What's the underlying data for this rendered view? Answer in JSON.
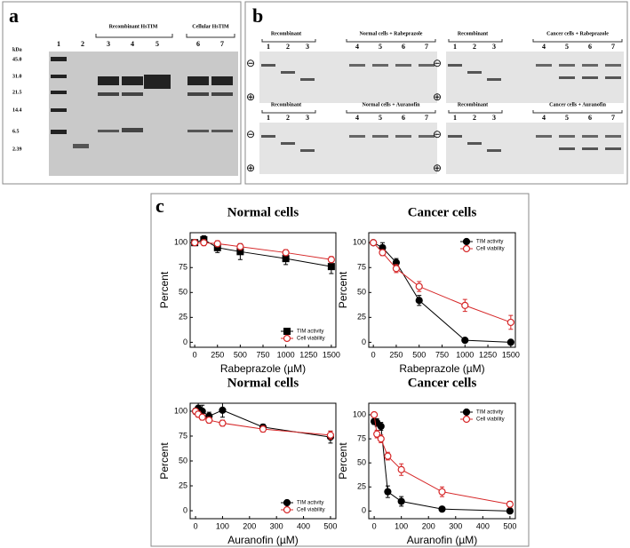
{
  "panel_a": {
    "letter": "a",
    "kda_label": "kDa",
    "markers": [
      "45.0",
      "31.0",
      "21.5",
      "14.4",
      "6.5",
      "2.39"
    ],
    "groups": [
      "Recombinant HsTIM",
      "Cellular HsTIM"
    ],
    "lanes": [
      "1",
      "2",
      "3",
      "4",
      "5",
      "6",
      "7"
    ]
  },
  "panel_b": {
    "letter": "b",
    "minus_symbol": "⊖",
    "plus_symbol": "⊕",
    "blots": [
      {
        "left_label": "Recombinant",
        "left_lanes": [
          "1",
          "2",
          "3"
        ],
        "right_label": "Normal cells + Rabeprazole",
        "right_lanes": [
          "4",
          "5",
          "6",
          "7"
        ]
      },
      {
        "left_label": "Recombinant",
        "left_lanes": [
          "1",
          "2",
          "3"
        ],
        "right_label": "Cancer cells + Rabeprazole",
        "right_lanes": [
          "4",
          "5",
          "6",
          "7"
        ]
      },
      {
        "left_label": "Recombinant",
        "left_lanes": [
          "1",
          "2",
          "3"
        ],
        "right_label": "Normal cells + Auranofin",
        "right_lanes": [
          "4",
          "5",
          "6",
          "7"
        ]
      },
      {
        "left_label": "Recombinant",
        "left_lanes": [
          "1",
          "2",
          "3"
        ],
        "right_label": "Cancer cells + Auranofin",
        "right_lanes": [
          "4",
          "5",
          "6",
          "7"
        ]
      }
    ]
  },
  "panel_c": {
    "letter": "c"
  },
  "chart_data": [
    {
      "type": "line",
      "title": "Normal cells",
      "x_label": "Rabeprazole (µM)",
      "y_label": "Percent",
      "x": [
        0,
        100,
        250,
        500,
        1000,
        1500
      ],
      "xlim": [
        -50,
        1550
      ],
      "xticks": [
        0,
        250,
        500,
        750,
        1000,
        1250,
        1500
      ],
      "ylim": [
        -5,
        110
      ],
      "yticks": [
        0,
        25,
        50,
        75,
        100
      ],
      "legend": "bottom-right",
      "series": [
        {
          "name": "TIM activity",
          "color": "#000000",
          "marker": "square",
          "filled": true,
          "values": [
            100,
            103,
            95,
            91,
            84,
            76
          ],
          "errors": [
            2,
            4,
            5,
            8,
            6,
            7
          ]
        },
        {
          "name": "Cell viability",
          "color": "#d62728",
          "marker": "circle",
          "filled": false,
          "values": [
            100,
            100,
            99,
            96,
            90,
            83
          ],
          "errors": [
            2,
            3,
            3,
            3,
            3,
            3
          ]
        }
      ]
    },
    {
      "type": "line",
      "title": "Cancer cells",
      "x_label": "Rabeprazole (µM)",
      "y_label": "Percent",
      "x": [
        0,
        100,
        250,
        500,
        1000,
        1500
      ],
      "xlim": [
        -50,
        1550
      ],
      "xticks": [
        0,
        250,
        500,
        750,
        1000,
        1250,
        1500
      ],
      "ylim": [
        -5,
        110
      ],
      "yticks": [
        0,
        25,
        50,
        75,
        100
      ],
      "legend": "top-right",
      "series": [
        {
          "name": "TIM activity",
          "color": "#000000",
          "marker": "circle",
          "filled": true,
          "values": [
            100,
            95,
            80,
            42,
            2,
            0
          ],
          "errors": [
            2,
            5,
            4,
            5,
            1,
            1
          ]
        },
        {
          "name": "Cell viability",
          "color": "#d62728",
          "marker": "circle",
          "filled": false,
          "values": [
            100,
            90,
            74,
            56,
            37,
            20
          ],
          "errors": [
            2,
            3,
            4,
            5,
            6,
            7
          ]
        }
      ]
    },
    {
      "type": "line",
      "title": "Normal cells",
      "x_label": "Auranofin (µM)",
      "y_label": "Percent",
      "x": [
        0,
        10,
        25,
        50,
        100,
        250,
        500
      ],
      "xlim": [
        -20,
        520
      ],
      "xticks": [
        0,
        100,
        200,
        300,
        400,
        500
      ],
      "ylim": [
        -8,
        108
      ],
      "yticks": [
        0,
        25,
        50,
        75,
        100
      ],
      "legend": "bottom-right",
      "series": [
        {
          "name": "TIM activity",
          "color": "#000000",
          "marker": "circle",
          "filled": true,
          "values": [
            100,
            103,
            100,
            95,
            101,
            84,
            74
          ],
          "errors": [
            3,
            5,
            6,
            4,
            7,
            3,
            6
          ]
        },
        {
          "name": "Cell viability",
          "color": "#d62728",
          "marker": "circle",
          "filled": false,
          "values": [
            100,
            97,
            94,
            91,
            88,
            82,
            76
          ],
          "errors": [
            2,
            3,
            3,
            3,
            3,
            3,
            4
          ]
        }
      ]
    },
    {
      "type": "line",
      "title": "Cancer cells",
      "x_label": "Auranofin (µM)",
      "y_label": "Percent",
      "x": [
        0,
        10,
        25,
        50,
        100,
        250,
        500
      ],
      "xlim": [
        -20,
        520
      ],
      "xticks": [
        0,
        100,
        200,
        300,
        400,
        500
      ],
      "ylim": [
        -8,
        112
      ],
      "yticks": [
        0,
        25,
        50,
        75,
        100
      ],
      "legend": "top-right",
      "series": [
        {
          "name": "TIM activity",
          "color": "#000000",
          "marker": "circle",
          "filled": true,
          "values": [
            93,
            92,
            88,
            20,
            10,
            2,
            0
          ],
          "errors": [
            3,
            4,
            4,
            6,
            5,
            1,
            1
          ]
        },
        {
          "name": "Cell viability",
          "color": "#d62728",
          "marker": "circle",
          "filled": false,
          "values": [
            100,
            80,
            75,
            57,
            43,
            20,
            7
          ],
          "errors": [
            2,
            4,
            4,
            4,
            6,
            5,
            3
          ]
        }
      ]
    }
  ]
}
